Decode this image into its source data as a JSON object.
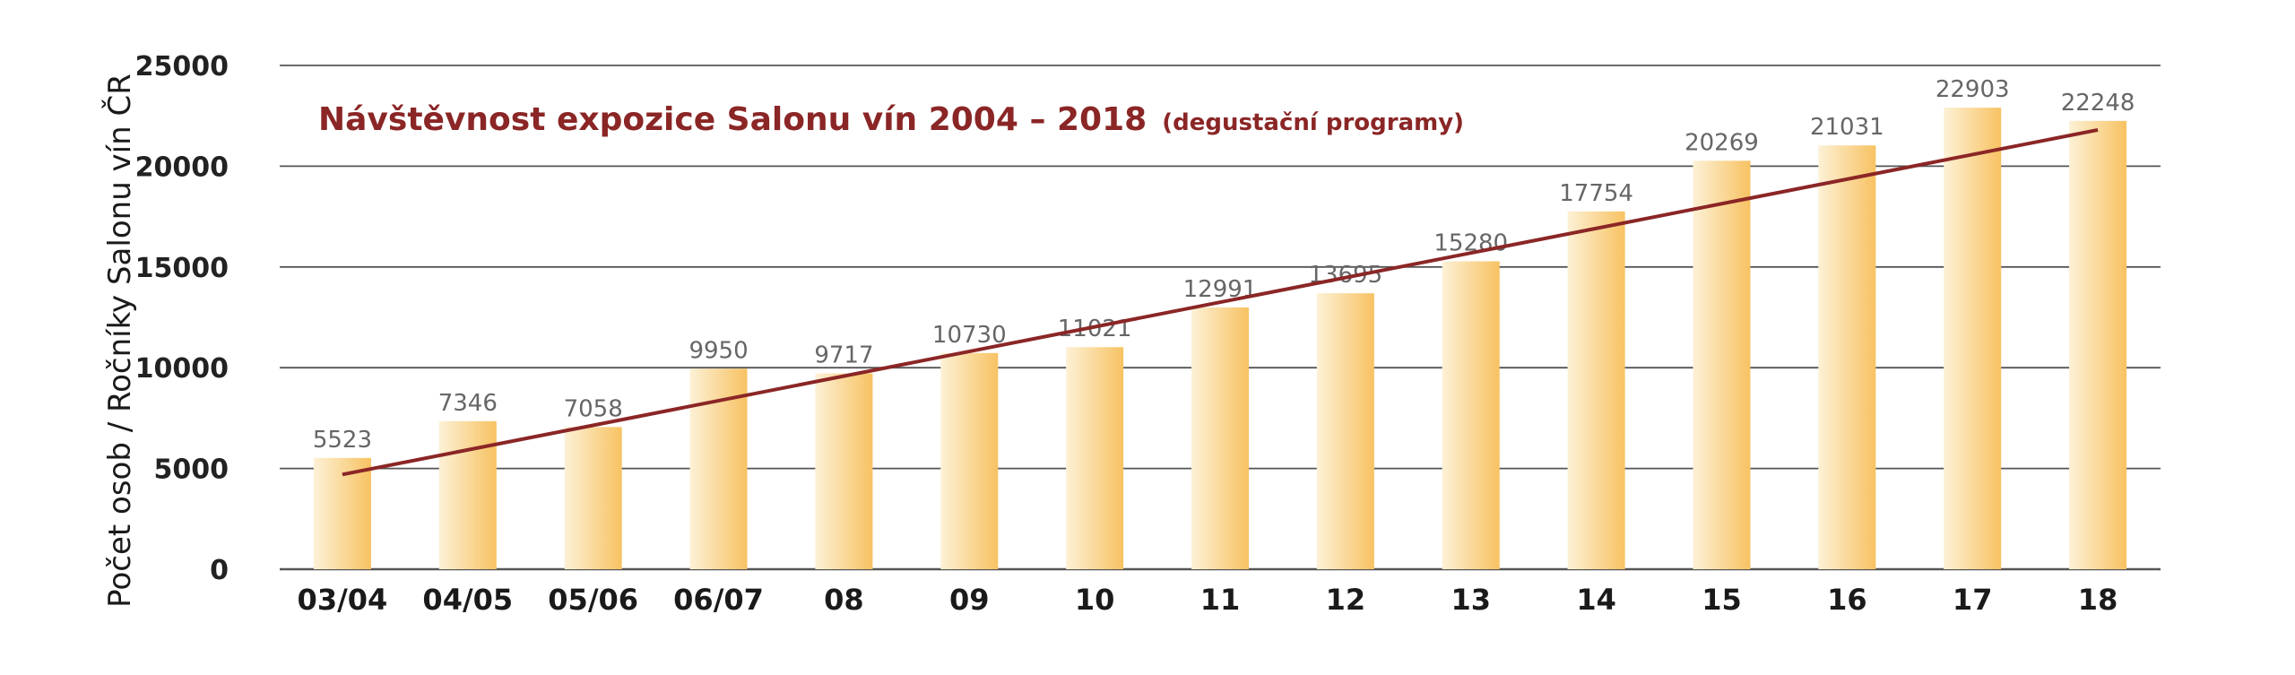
{
  "colors": {
    "bar_light": "#fdf1d6",
    "bar_dark": "#f7c262",
    "trend": "#8b2626",
    "title": "#8b2626",
    "grid": "#555555",
    "text": "#1a1a1a",
    "data_label": "#666666"
  },
  "chart_data": {
    "type": "bar",
    "title": "Návštěvnost expozice Salonu vín 2004 – 2018",
    "subtitle": "(degustační programy)",
    "xlabel": "",
    "ylabel": "Počet osob / Ročníky Salonu vín ČR",
    "ylim": [
      0,
      25000
    ],
    "yticks": [
      0,
      5000,
      10000,
      15000,
      20000,
      25000
    ],
    "grid": true,
    "categories": [
      "03/04",
      "04/05",
      "05/06",
      "06/07",
      "08",
      "09",
      "10",
      "11",
      "12",
      "13",
      "14",
      "15",
      "16",
      "17",
      "18"
    ],
    "values": [
      5523,
      7346,
      7058,
      9950,
      9717,
      10730,
      11021,
      12991,
      13695,
      15280,
      17754,
      20269,
      21031,
      22903,
      22248
    ],
    "data_labels": [
      "5523",
      "7346",
      "7058",
      "9950",
      "9717",
      "10730",
      "11021",
      "12991",
      "13695",
      "15280",
      "17754",
      "20269",
      "21031",
      "22903",
      "22248"
    ],
    "trendline": {
      "type": "linear",
      "start_value": 4700,
      "end_value": 21800
    }
  }
}
